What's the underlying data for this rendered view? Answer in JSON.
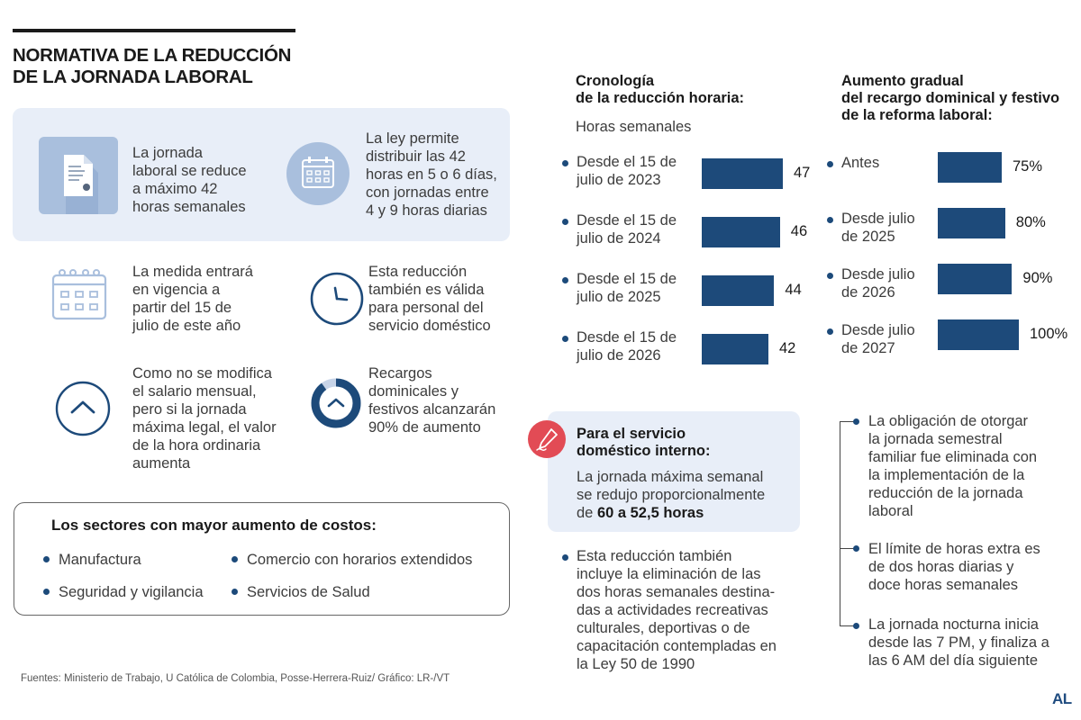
{
  "header": {
    "title_line1": "NORMATIVA DE LA REDUCCIÓN",
    "title_line2": "DE LA JORNADA LABORAL"
  },
  "facts": {
    "f1": [
      "La jornada",
      "laboral se reduce",
      "a máximo 42",
      "horas semanales"
    ],
    "f2": [
      "La ley permite",
      "distribuir las 42",
      "horas en 5 o 6 días,",
      "con jornadas entre",
      "4 y 9 horas diarias"
    ],
    "f3": [
      "La medida entrará",
      "en vigencia a",
      "partir del 15 de",
      "julio de este año"
    ],
    "f4": [
      "Esta reducción",
      "también es válida",
      "para personal del",
      "servicio doméstico"
    ],
    "f5": [
      "Como no se modifica",
      "el salario mensual,",
      "pero si la jornada",
      "máxima legal, el valor",
      "de la hora ordinaria",
      "aumenta"
    ],
    "f6": [
      "Recargos",
      "dominicales y",
      "festivos alcanzarán",
      "90% de aumento"
    ]
  },
  "sectors": {
    "title": "Los sectores con mayor aumento de costos:",
    "items": [
      "Manufactura",
      "Comercio con horarios extendidos",
      "Seguridad y vigilancia",
      "Servicios de Salud"
    ]
  },
  "source": "Fuentes: Ministerio de Trabajo, U Católica de Colombia, Posse-Herrera-Ruiz/ Gráfico: LR-/VT",
  "logo": "AL",
  "domestic": {
    "title_line1": "Para el servicio",
    "title_line2": "doméstico interno:",
    "body_line1": "La jornada máxima semanal",
    "body_line2": "se redujo proporcionalmente",
    "body_line3_pre": "de ",
    "body_line3_bold": "60 a 52,5 horas"
  },
  "notes": {
    "left": [
      "Esta reducción también",
      "incluye la eliminación de las",
      "dos horas semanales destina-",
      "das a actividades recreativas",
      "culturales, deportivas o de",
      "capacitación contempladas en",
      "la Ley 50 de 1990"
    ],
    "right1": [
      "La obligación de otorgar",
      "la jornada semestral",
      "familiar fue eliminada con",
      "la implementación de la",
      "reducción de la jornada",
      "laboral"
    ],
    "right2": [
      "El límite de horas extra es",
      "de dos horas diarias y",
      "doce horas semanales"
    ],
    "right3": [
      "La jornada nocturna inicia",
      "desde las 7 PM, y finaliza a",
      "las 6 AM del día siguiente"
    ]
  },
  "chart_data": [
    {
      "type": "bar",
      "title": "Cronología de la reducción horaria:",
      "title_lines": [
        "Cronología",
        "de la reducción horaria:"
      ],
      "ylabel": "Horas semanales",
      "categories": [
        [
          "Desde el 15 de",
          "julio de 2023"
        ],
        [
          "Desde el 15 de",
          "julio de 2024"
        ],
        [
          "Desde el 15 de",
          "julio de 2025"
        ],
        [
          "Desde el 15 de",
          "julio de 2026"
        ]
      ],
      "values": [
        47,
        46,
        44,
        42
      ],
      "value_labels": [
        "47",
        "46",
        "44",
        "42"
      ],
      "color": "#1d4a7a"
    },
    {
      "type": "bar",
      "title": "Aumento gradual del recargo dominical y festivo de la reforma laboral:",
      "title_lines": [
        "Aumento gradual",
        "del recargo dominical y festivo",
        "de la reforma laboral:"
      ],
      "categories": [
        [
          "Antes"
        ],
        [
          "Desde julio",
          "de 2025"
        ],
        [
          "Desde julio",
          "de 2026"
        ],
        [
          "Desde julio",
          "de 2027"
        ]
      ],
      "values": [
        75,
        80,
        90,
        100
      ],
      "value_labels": [
        "75%",
        "80%",
        "90%",
        "100%"
      ],
      "color": "#1d4a7a"
    }
  ]
}
